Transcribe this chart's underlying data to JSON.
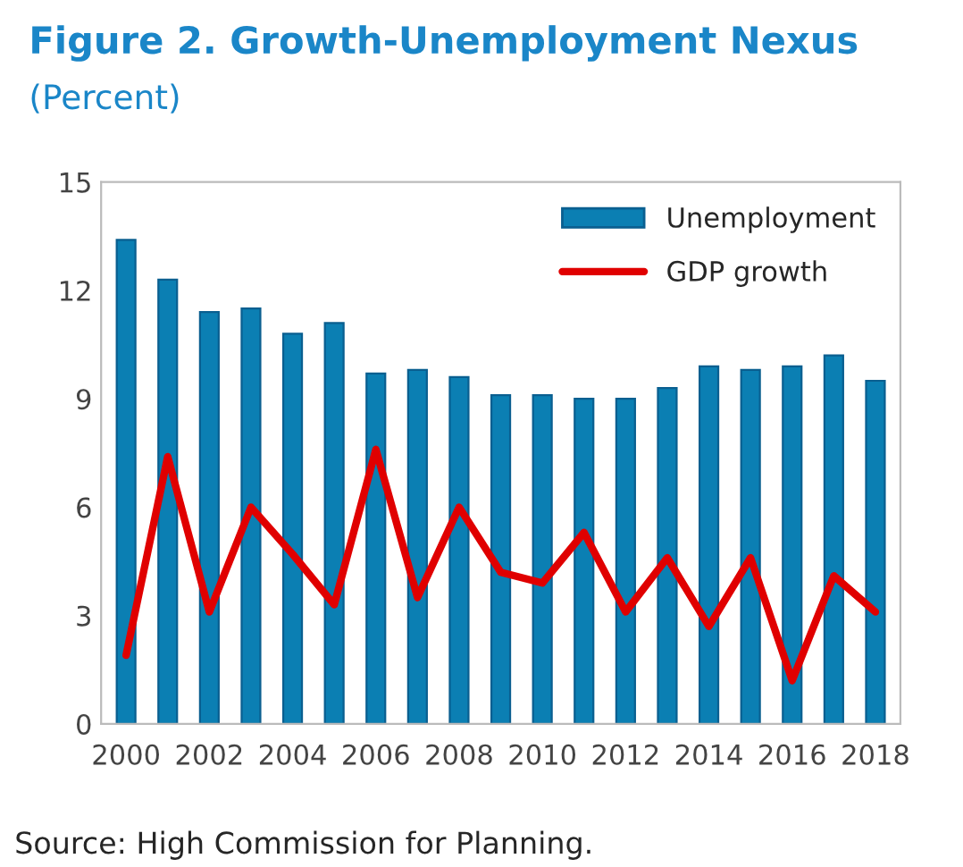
{
  "chart_data": {
    "type": "bar",
    "title": "Figure 2. Growth-Unemployment Nexus",
    "subtitle": "(Percent)",
    "categories": [
      "2000",
      null,
      "2002",
      null,
      "2004",
      null,
      "2006",
      null,
      "2008",
      null,
      "2010",
      null,
      "2012",
      null,
      "2014",
      null,
      "2016",
      null,
      "2018"
    ],
    "series": [
      {
        "name": "Unemployment",
        "color": "#0b7fb3",
        "values": [
          13.4,
          12.3,
          11.4,
          11.5,
          10.8,
          11.1,
          9.7,
          9.8,
          9.6,
          9.1,
          9.1,
          9.0,
          9.0,
          9.3,
          9.9,
          9.8,
          9.9,
          10.2,
          9.5
        ]
      },
      {
        "name": "GDP growth",
        "type": "line",
        "color": "#e00000",
        "values": [
          1.9,
          7.4,
          3.1,
          6.0,
          4.7,
          3.3,
          7.6,
          3.5,
          6.0,
          4.2,
          3.9,
          5.3,
          3.1,
          4.6,
          2.7,
          4.6,
          1.2,
          4.1,
          3.1
        ]
      }
    ],
    "ylim": [
      0,
      15
    ],
    "yticks": [
      0,
      3,
      6,
      9,
      12,
      15
    ],
    "grid": false,
    "legend": "top right",
    "annotations": [
      "Source: High Commission for Planning."
    ]
  }
}
